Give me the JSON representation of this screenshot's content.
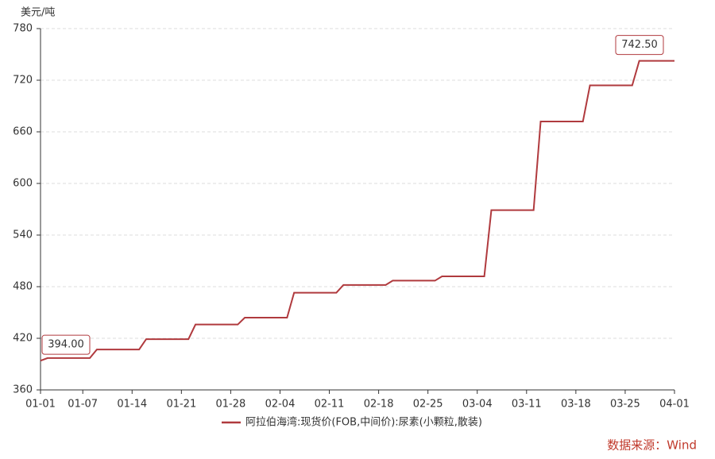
{
  "chart_data": {
    "type": "line",
    "y_label": "美元/吨",
    "source": "数据来源：Wind",
    "x": [
      0,
      1,
      7,
      8,
      14,
      15,
      21,
      22,
      28,
      29,
      35,
      36,
      42,
      43,
      49,
      50,
      56,
      57,
      63,
      64,
      70,
      71,
      77,
      78,
      84,
      85,
      90
    ],
    "series": [
      {
        "name": "阿拉伯海湾:现货价(FOB,中间价):尿素(小颗粒,散装)",
        "color": "#b03a3e",
        "values": [
          394,
          397,
          397,
          407,
          407,
          419,
          419,
          436,
          436,
          444,
          444,
          473,
          473,
          482,
          482,
          487,
          487,
          492,
          492,
          569,
          569,
          672,
          672,
          714,
          714,
          742.5,
          742.5
        ],
        "value_labels": [
          "394.00",
          null,
          null,
          null,
          null,
          null,
          null,
          null,
          null,
          null,
          null,
          null,
          null,
          null,
          null,
          null,
          null,
          null,
          null,
          null,
          null,
          null,
          null,
          null,
          null,
          null,
          "742.50"
        ]
      }
    ],
    "xlim": [
      0,
      90
    ],
    "xticks": [
      {
        "value": 0,
        "label": "01-01"
      },
      {
        "value": 6,
        "label": "01-07"
      },
      {
        "value": 13,
        "label": "01-14"
      },
      {
        "value": 20,
        "label": "01-21"
      },
      {
        "value": 27,
        "label": "01-28"
      },
      {
        "value": 34,
        "label": "02-04"
      },
      {
        "value": 41,
        "label": "02-11"
      },
      {
        "value": 48,
        "label": "02-18"
      },
      {
        "value": 55,
        "label": "02-25"
      },
      {
        "value": 62,
        "label": "03-04"
      },
      {
        "value": 69,
        "label": "03-11"
      },
      {
        "value": 76,
        "label": "03-18"
      },
      {
        "value": 83,
        "label": "03-25"
      },
      {
        "value": 90,
        "label": "04-01"
      }
    ],
    "ylim": [
      360,
      780
    ],
    "yticks": [
      360,
      420,
      480,
      540,
      600,
      660,
      720,
      780
    ],
    "grid": true
  }
}
